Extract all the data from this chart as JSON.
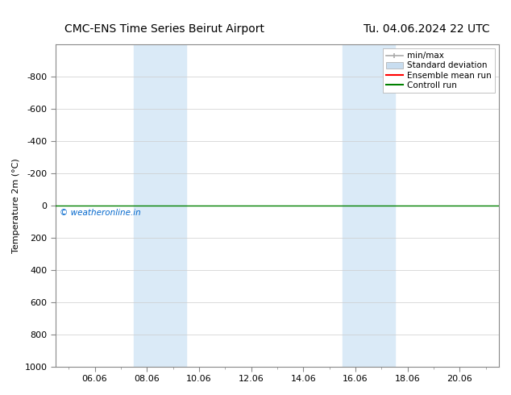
{
  "title_left": "CMC-ENS Time Series Beirut Airport",
  "title_right": "Tu. 04.06.2024 22 UTC",
  "ylabel": "Temperature 2m (°C)",
  "xlabel": "",
  "ylim": [
    -1000,
    1000
  ],
  "yticks": [
    -800,
    -600,
    -400,
    -200,
    0,
    200,
    400,
    600,
    800,
    1000
  ],
  "xtick_labels": [
    "06.06",
    "08.06",
    "10.06",
    "12.06",
    "14.06",
    "16.06",
    "18.06",
    "20.06"
  ],
  "xtick_positions": [
    2,
    4,
    6,
    8,
    10,
    12,
    14,
    16
  ],
  "xlim": [
    0.5,
    17.5
  ],
  "shaded_regions": [
    {
      "xmin": 3.5,
      "xmax": 5.5
    },
    {
      "xmin": 11.5,
      "xmax": 13.5
    }
  ],
  "shaded_color": "#daeaf7",
  "green_line_y": 0,
  "watermark": "© weatheronline.in",
  "watermark_color": "#0066cc",
  "legend_entries": [
    "min/max",
    "Standard deviation",
    "Ensemble mean run",
    "Controll run"
  ],
  "legend_line_color": "#aaaaaa",
  "legend_std_color": "#c8ddf0",
  "legend_ensemble_color": "#ff0000",
  "legend_control_color": "#008000",
  "background_color": "#ffffff",
  "plot_bg_color": "#ffffff",
  "spine_color": "#888888",
  "tick_color": "#333333",
  "title_fontsize": 10,
  "axis_label_fontsize": 8,
  "tick_fontsize": 8,
  "legend_fontsize": 7.5
}
